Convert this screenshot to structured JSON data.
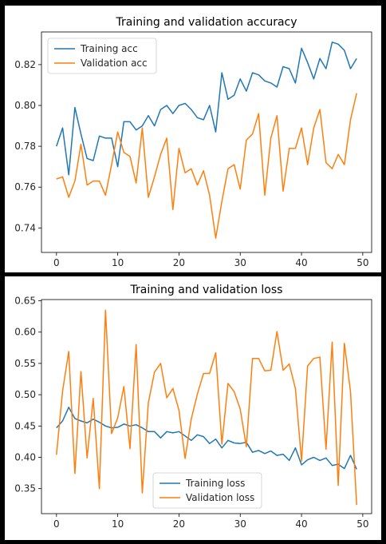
{
  "colors": {
    "training": "#1f77b4",
    "validation": "#ff7f0e"
  },
  "chart_data": [
    {
      "type": "line",
      "title": "Training and validation accuracy",
      "xlabel": "",
      "ylabel": "",
      "xlim": [
        -2.45,
        51.45
      ],
      "ylim": [
        0.728,
        0.836
      ],
      "xticks": [
        0,
        10,
        20,
        30,
        40,
        50
      ],
      "yticks": [
        0.74,
        0.76,
        0.78,
        0.8,
        0.82
      ],
      "ytick_labels": [
        "0.74",
        "0.76",
        "0.78",
        "0.80",
        "0.82"
      ],
      "legend": "top-left",
      "grid": false,
      "x": [
        0,
        1,
        2,
        3,
        4,
        5,
        6,
        7,
        8,
        9,
        10,
        11,
        12,
        13,
        14,
        15,
        16,
        17,
        18,
        19,
        20,
        21,
        22,
        23,
        24,
        25,
        26,
        27,
        28,
        29,
        30,
        31,
        32,
        33,
        34,
        35,
        36,
        37,
        38,
        39,
        40,
        41,
        42,
        43,
        44,
        45,
        46,
        47,
        48,
        49
      ],
      "series": [
        {
          "name": "Training acc",
          "color": "#1f77b4",
          "values": [
            0.78,
            0.789,
            0.766,
            0.799,
            0.786,
            0.774,
            0.773,
            0.785,
            0.784,
            0.784,
            0.77,
            0.792,
            0.792,
            0.788,
            0.79,
            0.795,
            0.79,
            0.798,
            0.8,
            0.796,
            0.8,
            0.801,
            0.798,
            0.794,
            0.793,
            0.8,
            0.787,
            0.816,
            0.803,
            0.805,
            0.813,
            0.807,
            0.816,
            0.815,
            0.812,
            0.811,
            0.809,
            0.819,
            0.818,
            0.811,
            0.828,
            0.821,
            0.813,
            0.823,
            0.818,
            0.831,
            0.83,
            0.827,
            0.818,
            0.823
          ]
        },
        {
          "name": "Validation acc",
          "color": "#ff7f0e",
          "values": [
            0.764,
            0.765,
            0.755,
            0.763,
            0.781,
            0.761,
            0.763,
            0.763,
            0.756,
            0.771,
            0.787,
            0.777,
            0.775,
            0.762,
            0.789,
            0.755,
            0.765,
            0.776,
            0.784,
            0.749,
            0.779,
            0.767,
            0.769,
            0.761,
            0.768,
            0.756,
            0.735,
            0.753,
            0.769,
            0.771,
            0.759,
            0.783,
            0.786,
            0.796,
            0.756,
            0.784,
            0.795,
            0.758,
            0.779,
            0.779,
            0.789,
            0.771,
            0.789,
            0.798,
            0.772,
            0.769,
            0.776,
            0.771,
            0.793,
            0.806
          ]
        }
      ]
    },
    {
      "type": "line",
      "title": "Training and validation loss",
      "xlabel": "",
      "ylabel": "",
      "xlim": [
        -2.45,
        51.45
      ],
      "ylim": [
        0.31,
        0.652
      ],
      "xticks": [
        0,
        10,
        20,
        30,
        40,
        50
      ],
      "yticks": [
        0.35,
        0.4,
        0.45,
        0.5,
        0.55,
        0.6,
        0.65
      ],
      "ytick_labels": [
        "0.35",
        "0.40",
        "0.45",
        "0.50",
        "0.55",
        "0.60",
        "0.65"
      ],
      "legend": "bottom-center",
      "grid": false,
      "x": [
        0,
        1,
        2,
        3,
        4,
        5,
        6,
        7,
        8,
        9,
        10,
        11,
        12,
        13,
        14,
        15,
        16,
        17,
        18,
        19,
        20,
        21,
        22,
        23,
        24,
        25,
        26,
        27,
        28,
        29,
        30,
        31,
        32,
        33,
        34,
        35,
        36,
        37,
        38,
        39,
        40,
        41,
        42,
        43,
        44,
        45,
        46,
        47,
        48,
        49
      ],
      "series": [
        {
          "name": "Training loss",
          "color": "#1f77b4",
          "values": [
            0.447,
            0.458,
            0.48,
            0.462,
            0.458,
            0.455,
            0.461,
            0.456,
            0.45,
            0.447,
            0.448,
            0.453,
            0.45,
            0.452,
            0.447,
            0.441,
            0.441,
            0.431,
            0.441,
            0.439,
            0.441,
            0.434,
            0.427,
            0.436,
            0.433,
            0.422,
            0.429,
            0.415,
            0.427,
            0.423,
            0.422,
            0.424,
            0.408,
            0.411,
            0.406,
            0.41,
            0.403,
            0.405,
            0.395,
            0.415,
            0.388,
            0.396,
            0.4,
            0.395,
            0.399,
            0.387,
            0.389,
            0.382,
            0.403,
            0.381
          ]
        },
        {
          "name": "Validation loss",
          "color": "#ff7f0e",
          "values": [
            0.404,
            0.506,
            0.569,
            0.374,
            0.537,
            0.399,
            0.494,
            0.35,
            0.635,
            0.438,
            0.463,
            0.513,
            0.414,
            0.58,
            0.343,
            0.487,
            0.536,
            0.55,
            0.495,
            0.51,
            0.475,
            0.398,
            0.461,
            0.501,
            0.534,
            0.534,
            0.567,
            0.421,
            0.518,
            0.505,
            0.477,
            0.417,
            0.558,
            0.558,
            0.538,
            0.539,
            0.601,
            0.539,
            0.549,
            0.51,
            0.394,
            0.546,
            0.558,
            0.56,
            0.413,
            0.584,
            0.355,
            0.582,
            0.505,
            0.324
          ]
        }
      ]
    }
  ]
}
